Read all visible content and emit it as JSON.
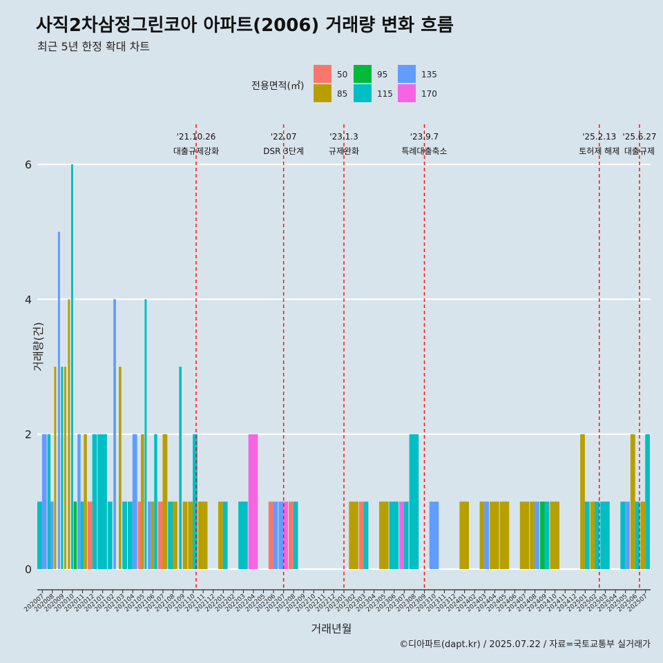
{
  "page": {
    "title": "사직2차삼정그린코아 아파트(2006) 거래량 변화 흐름",
    "subtitle": "최근 5년 한정 확대 차트",
    "caption": "©디아파트(dapt.kr) / 2025.07.22 / 자료=국토교통부 실거래가"
  },
  "chart_data": {
    "type": "bar",
    "title": "사직2차삼정그린코아 아파트(2006) 거래량 변화 흐름",
    "xlabel": "거래년월",
    "ylabel": "거래량(건)",
    "ylim": [
      -0.3,
      6.6
    ],
    "yticks": [
      0,
      2,
      4,
      6
    ],
    "grid": true,
    "legend_position": "top",
    "legend_title": "전용면적(㎡)",
    "series": [
      {
        "name": "50",
        "color": "#f8766d"
      },
      {
        "name": "85",
        "color": "#b79f00"
      },
      {
        "name": "95",
        "color": "#00ba38"
      },
      {
        "name": "115",
        "color": "#00bfc4"
      },
      {
        "name": "135",
        "color": "#619cff"
      },
      {
        "name": "170",
        "color": "#f564e3"
      }
    ],
    "categories": [
      "202007",
      "202008",
      "202009",
      "202010",
      "202011",
      "202012",
      "202101",
      "202102",
      "202103",
      "202104",
      "202105",
      "202106",
      "202107",
      "202108",
      "202109",
      "202110",
      "202111",
      "202112",
      "202201",
      "202202",
      "202203",
      "202204",
      "202205",
      "202206",
      "202207",
      "202208",
      "202209",
      "202210",
      "202211",
      "202212",
      "202301",
      "202302",
      "202303",
      "202304",
      "202305",
      "202306",
      "202307",
      "202308",
      "202309",
      "202310",
      "202311",
      "202312",
      "202401",
      "202402",
      "202403",
      "202404",
      "202405",
      "202406",
      "202407",
      "202408",
      "202409",
      "202410",
      "202411",
      "202412",
      "202501",
      "202502",
      "202503",
      "202504",
      "202505",
      "202506",
      "202507"
    ],
    "bars": [
      {
        "month": "202007",
        "segments": [
          {
            "s": "115",
            "v": 1
          },
          {
            "s": "135",
            "v": 2
          }
        ]
      },
      {
        "month": "202008",
        "segments": [
          {
            "s": "115",
            "v": 2
          },
          {
            "s": "135",
            "v": 1
          },
          {
            "s": "85",
            "v": 3
          }
        ]
      },
      {
        "month": "202009",
        "segments": [
          {
            "s": "135",
            "v": 5
          },
          {
            "s": "115",
            "v": 3
          },
          {
            "s": "85",
            "v": 3
          }
        ]
      },
      {
        "month": "202010",
        "segments": [
          {
            "s": "85",
            "v": 4
          },
          {
            "s": "115",
            "v": 6
          },
          {
            "s": "95",
            "v": 1
          }
        ]
      },
      {
        "month": "202011",
        "segments": [
          {
            "s": "135",
            "v": 2
          },
          {
            "s": "115",
            "v": 1
          },
          {
            "s": "85",
            "v": 2
          }
        ]
      },
      {
        "month": "202012",
        "segments": [
          {
            "s": "50",
            "v": 1
          },
          {
            "s": "115",
            "v": 2
          }
        ]
      },
      {
        "month": "202101",
        "segments": [
          {
            "s": "115",
            "v": 2
          }
        ]
      },
      {
        "month": "202102",
        "segments": [
          {
            "s": "115",
            "v": 1
          },
          {
            "s": "135",
            "v": 4
          }
        ]
      },
      {
        "month": "202103",
        "segments": [
          {
            "s": "85",
            "v": 3
          },
          {
            "s": "115",
            "v": 1
          }
        ]
      },
      {
        "month": "202104",
        "segments": [
          {
            "s": "115",
            "v": 1
          },
          {
            "s": "135",
            "v": 2
          }
        ]
      },
      {
        "month": "202105",
        "segments": [
          {
            "s": "50",
            "v": 1
          },
          {
            "s": "85",
            "v": 2
          },
          {
            "s": "115",
            "v": 4
          }
        ]
      },
      {
        "month": "202106",
        "segments": [
          {
            "s": "135",
            "v": 1
          },
          {
            "s": "85",
            "v": 1
          },
          {
            "s": "115",
            "v": 2
          }
        ]
      },
      {
        "month": "202107",
        "segments": [
          {
            "s": "50",
            "v": 1
          },
          {
            "s": "85",
            "v": 2
          }
        ]
      },
      {
        "month": "202108",
        "segments": [
          {
            "s": "115",
            "v": 1
          },
          {
            "s": "85",
            "v": 1
          }
        ]
      },
      {
        "month": "202109",
        "segments": [
          {
            "s": "115",
            "v": 3
          },
          {
            "s": "85",
            "v": 1
          }
        ]
      },
      {
        "month": "202110",
        "segments": [
          {
            "s": "85",
            "v": 1
          },
          {
            "s": "115",
            "v": 2
          }
        ]
      },
      {
        "month": "202111",
        "segments": [
          {
            "s": "85",
            "v": 1
          }
        ]
      },
      {
        "month": "202112",
        "segments": []
      },
      {
        "month": "202201",
        "segments": [
          {
            "s": "85",
            "v": 1
          },
          {
            "s": "115",
            "v": 1
          }
        ]
      },
      {
        "month": "202202",
        "segments": []
      },
      {
        "month": "202203",
        "segments": [
          {
            "s": "115",
            "v": 1
          }
        ]
      },
      {
        "month": "202204",
        "segments": [
          {
            "s": "170",
            "v": 2
          }
        ]
      },
      {
        "month": "202205",
        "segments": []
      },
      {
        "month": "202206",
        "segments": [
          {
            "s": "50",
            "v": 1
          },
          {
            "s": "135",
            "v": 1
          }
        ]
      },
      {
        "month": "202207",
        "segments": [
          {
            "s": "135",
            "v": 1
          },
          {
            "s": "170",
            "v": 1
          }
        ]
      },
      {
        "month": "202208",
        "segments": [
          {
            "s": "50",
            "v": 1
          },
          {
            "s": "115",
            "v": 1
          }
        ]
      },
      {
        "month": "202209",
        "segments": []
      },
      {
        "month": "202210",
        "segments": []
      },
      {
        "month": "202211",
        "segments": []
      },
      {
        "month": "202212",
        "segments": []
      },
      {
        "month": "202301",
        "segments": []
      },
      {
        "month": "202302",
        "segments": [
          {
            "s": "85",
            "v": 1
          }
        ]
      },
      {
        "month": "202303",
        "segments": [
          {
            "s": "50",
            "v": 1
          },
          {
            "s": "115",
            "v": 1
          }
        ]
      },
      {
        "month": "202304",
        "segments": []
      },
      {
        "month": "202305",
        "segments": [
          {
            "s": "85",
            "v": 1
          }
        ]
      },
      {
        "month": "202306",
        "segments": [
          {
            "s": "115",
            "v": 1
          }
        ]
      },
      {
        "month": "202307",
        "segments": [
          {
            "s": "170",
            "v": 1
          },
          {
            "s": "115",
            "v": 1
          }
        ]
      },
      {
        "month": "202308",
        "segments": [
          {
            "s": "115",
            "v": 2
          }
        ]
      },
      {
        "month": "202309",
        "segments": []
      },
      {
        "month": "202310",
        "segments": [
          {
            "s": "135",
            "v": 1
          }
        ]
      },
      {
        "month": "202311",
        "segments": []
      },
      {
        "month": "202312",
        "segments": []
      },
      {
        "month": "202401",
        "segments": [
          {
            "s": "85",
            "v": 1
          }
        ]
      },
      {
        "month": "202402",
        "segments": []
      },
      {
        "month": "202403",
        "segments": [
          {
            "s": "85",
            "v": 1
          },
          {
            "s": "135",
            "v": 1
          }
        ]
      },
      {
        "month": "202404",
        "segments": [
          {
            "s": "85",
            "v": 1
          }
        ]
      },
      {
        "month": "202405",
        "segments": [
          {
            "s": "85",
            "v": 1
          }
        ]
      },
      {
        "month": "202406",
        "segments": []
      },
      {
        "month": "202407",
        "segments": [
          {
            "s": "85",
            "v": 1
          }
        ]
      },
      {
        "month": "202408",
        "segments": [
          {
            "s": "85",
            "v": 1
          },
          {
            "s": "135",
            "v": 1
          }
        ]
      },
      {
        "month": "202409",
        "segments": [
          {
            "s": "95",
            "v": 1
          },
          {
            "s": "115",
            "v": 1
          }
        ]
      },
      {
        "month": "202410",
        "segments": [
          {
            "s": "85",
            "v": 1
          }
        ]
      },
      {
        "month": "202411",
        "segments": []
      },
      {
        "month": "202412",
        "segments": []
      },
      {
        "month": "202501",
        "segments": [
          {
            "s": "85",
            "v": 2
          },
          {
            "s": "115",
            "v": 1
          }
        ]
      },
      {
        "month": "202502",
        "segments": [
          {
            "s": "85",
            "v": 1
          },
          {
            "s": "115",
            "v": 1
          }
        ]
      },
      {
        "month": "202503",
        "segments": [
          {
            "s": "115",
            "v": 1
          }
        ]
      },
      {
        "month": "202504",
        "segments": []
      },
      {
        "month": "202505",
        "segments": [
          {
            "s": "115",
            "v": 1
          },
          {
            "s": "135",
            "v": 1
          }
        ]
      },
      {
        "month": "202506",
        "segments": [
          {
            "s": "85",
            "v": 2
          },
          {
            "s": "115",
            "v": 1
          }
        ]
      },
      {
        "month": "202507",
        "segments": [
          {
            "s": "85",
            "v": 1
          },
          {
            "s": "115",
            "v": 2
          }
        ]
      }
    ],
    "events": [
      {
        "month_index": 15.3,
        "date": "'21.10.26",
        "label": "대출규제강화"
      },
      {
        "month_index": 24.0,
        "date": "'22.07",
        "label": "DSR 3단계"
      },
      {
        "month_index": 30.0,
        "date": "'23.1.3",
        "label": "규제완화"
      },
      {
        "month_index": 38.0,
        "date": "'23.9.7",
        "label": "특례대출축소"
      },
      {
        "month_index": 55.4,
        "date": "'25.2.13",
        "label": "토허제 해제"
      },
      {
        "month_index": 59.4,
        "date": "'25.6.27",
        "label": "대출규제"
      }
    ]
  }
}
